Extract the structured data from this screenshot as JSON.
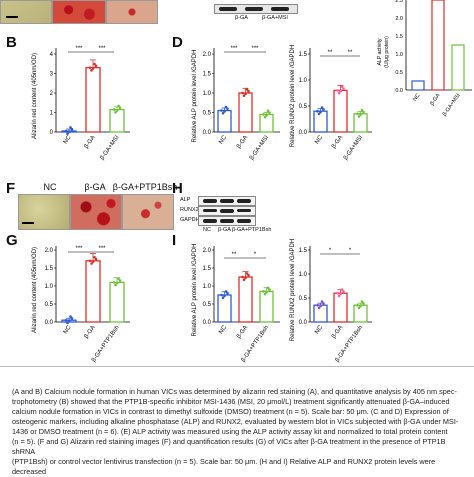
{
  "top": {
    "blot_labels": [
      "β-GA",
      "β-GA+MSI"
    ],
    "right_chart": {
      "ylabel": "ALP activity\n(U/μg protein)",
      "ticks": [
        "0.0",
        "0.5",
        "1.0",
        "1.5",
        "2.0",
        "2.5"
      ],
      "categories": [
        "NC",
        "β-GA",
        "β-GA+MSI"
      ]
    }
  },
  "panelB": {
    "letter": "B",
    "ylabel": "Alizarin red content\n(405nm/OD)",
    "ticks": [
      "0",
      "1",
      "2",
      "3",
      "4"
    ],
    "categories": [
      "NC",
      "β-GA",
      "β-GA+MSI"
    ],
    "sig": [
      "***",
      "***"
    ]
  },
  "panelD": {
    "letter": "D",
    "chart1": {
      "ylabel": "Relative ALP protein level\n/GAPDH",
      "ticks": [
        "0.0",
        "0.5",
        "1.0",
        "1.5",
        "2.0"
      ],
      "categories": [
        "NC",
        "β-GA",
        "β-GA+MSI"
      ],
      "sig": [
        "***",
        "***"
      ]
    },
    "chart2": {
      "ylabel": "Relative RUNX2 protein level\n/GAPDH",
      "ticks": [
        "0.0",
        "0.5",
        "1.0",
        "1.5"
      ],
      "categories": [
        "NC",
        "β-GA",
        "β-GA+MSI"
      ],
      "sig": [
        "**",
        "**"
      ]
    }
  },
  "panelF": {
    "letter": "F",
    "labels": [
      "NC",
      "β-GA",
      "β-GA+PTP1Bsh"
    ]
  },
  "panelH": {
    "letter": "H",
    "rows": [
      "ALP",
      "RUNX2",
      "GAPDH"
    ],
    "lanes": [
      "NC",
      "β-GA",
      "β-GA+PTP1Bsh"
    ]
  },
  "panelG": {
    "letter": "G",
    "ylabel": "Alizarin red content\n(405nm/OD)",
    "ticks": [
      "0.0",
      "0.5",
      "1.0",
      "1.5",
      "2.0"
    ],
    "categories": [
      "NC",
      "β-GA",
      "β-GA+PTP1Bsh"
    ],
    "sig": [
      "***",
      "***"
    ]
  },
  "panelI": {
    "letter": "I",
    "chart1": {
      "ylabel": "Relative ALP protein level\n/GAPDH",
      "ticks": [
        "0.0",
        "0.5",
        "1.0",
        "1.5",
        "2.0"
      ],
      "categories": [
        "NC",
        "β-GA",
        "β-GA+PTP1Bsh"
      ],
      "sig": [
        "**",
        "*"
      ]
    },
    "chart2": {
      "ylabel": "Relative RUNX2 protein level\n/GAPDH",
      "ticks": [
        "0.0",
        "0.5",
        "1.0",
        "1.5"
      ],
      "categories": [
        "NC",
        "β-GA",
        "β-GA+PTP1Bsh"
      ],
      "sig": [
        "*",
        "*"
      ]
    }
  },
  "caption": {
    "lines": [
      "(A and B) Calcium nodule formation in human VICs was determined by alizarin red staining (A), and quantitative analysis by 405 nm spec-",
      "trophotometry (B) showed that the PTP1B-specific inhibitor MSI-1436 (MSI, 20 μmol/L) treatment significantly attenuated β-GA–induced",
      "calcium nodule formation in VICs in contrast to dimethyl sulfoxide (DMSO) treatment (n = 5). Scale bar: 50 μm. (C and D) Expression of",
      "osteogenic markers, including alkaline phosphatase (ALP) and RUNX2, evaluated by western blot in VICs subjected with β-GA under MSI-",
      "1436 or DMSO treatment (n = 6). (E) ALP activity was measured using the ALP activity assay kit and normalized to total protein content",
      "(n = 5). (F and G) Alizarin red staining images (F) and quantification results (G) of VICs after β-GA treatment in the presence of PTP1B shRNA",
      "(PTP1Bsh) or control vector lentivirus transfection (n = 5). Scale bar: 50 μm. (H and I) Relative ALP and RUNX2 protein levels were decreased"
    ]
  },
  "chart_data": [
    {
      "type": "bar",
      "categories": [
        "NC",
        "β-GA",
        "β-GA+MSI"
      ],
      "values": [
        0.05,
        3.3,
        1.15
      ],
      "ylabel": "Alizarin red content (405nm/OD)",
      "ylim": [
        0,
        4
      ]
    },
    {
      "type": "bar",
      "categories": [
        "NC",
        "β-GA",
        "β-GA+MSI"
      ],
      "values": [
        0.55,
        1.0,
        0.45
      ],
      "ylabel": "Relative ALP protein level /GAPDH",
      "ylim": [
        0,
        2
      ]
    },
    {
      "type": "bar",
      "categories": [
        "NC",
        "β-GA",
        "β-GA+MSI"
      ],
      "values": [
        0.4,
        0.8,
        0.35
      ],
      "ylabel": "Relative RUNX2 protein level /GAPDH",
      "ylim": [
        0,
        1.5
      ]
    },
    {
      "type": "bar",
      "categories": [
        "NC",
        "β-GA",
        "β-GA+MSI"
      ],
      "values": [
        0.55,
        2.4,
        1.25
      ],
      "ylabel": "ALP activity (U/μg protein)",
      "ylim": [
        0,
        2.5
      ]
    },
    {
      "type": "bar",
      "categories": [
        "NC",
        "β-GA",
        "β-GA+PTP1Bsh"
      ],
      "values": [
        0.05,
        1.7,
        1.1
      ],
      "ylabel": "Alizarin red content (405nm/OD)",
      "ylim": [
        0,
        2
      ]
    },
    {
      "type": "bar",
      "categories": [
        "NC",
        "β-GA",
        "β-GA+PTP1Bsh"
      ],
      "values": [
        0.75,
        1.25,
        0.85
      ],
      "ylabel": "Relative ALP protein level /GAPDH",
      "ylim": [
        0,
        2
      ]
    },
    {
      "type": "bar",
      "categories": [
        "NC",
        "β-GA",
        "β-GA+PTP1Bsh"
      ],
      "values": [
        0.35,
        0.6,
        0.35
      ],
      "ylabel": "Relative RUNX2 protein level /GAPDH",
      "ylim": [
        0,
        1.5
      ]
    }
  ],
  "colors": {
    "nc": "#2f5bd6",
    "ga": "#e0302b",
    "msi": "#6fc33a",
    "pink": "#ff5fa8",
    "purple": "#8a4fc9"
  }
}
